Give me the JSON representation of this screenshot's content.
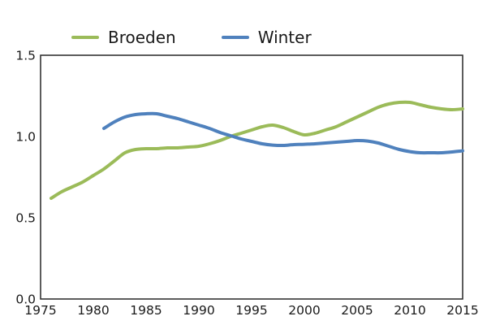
{
  "chart_data": {
    "type": "line",
    "title": "",
    "xlabel": "",
    "ylabel": "",
    "xlim": [
      1975,
      2015
    ],
    "ylim": [
      0,
      1.5
    ],
    "x_ticks": [
      1975,
      1980,
      1985,
      1990,
      1995,
      2000,
      2005,
      2010,
      2015
    ],
    "y_ticks": [
      0,
      0.5,
      1,
      1.5
    ],
    "y_tick_labels": [
      "0.0",
      "0.5",
      "1.0",
      "1.5"
    ],
    "grid": false,
    "legend_position": "top-left",
    "style": {
      "axis_color": "#262626",
      "text_color": "#1a1a1a",
      "background": "#ffffff",
      "line_width": 4
    },
    "series": [
      {
        "name": "Broeden",
        "color": "#9bbb59",
        "x": [
          1976,
          1977,
          1978,
          1979,
          1980,
          1981,
          1982,
          1983,
          1984,
          1985,
          1986,
          1987,
          1988,
          1989,
          1990,
          1991,
          1992,
          1993,
          1994,
          1995,
          1996,
          1997,
          1998,
          1999,
          2000,
          2001,
          2002,
          2003,
          2004,
          2005,
          2006,
          2007,
          2008,
          2009,
          2010,
          2011,
          2012,
          2013,
          2014,
          2015
        ],
        "y": [
          0.62,
          0.66,
          0.69,
          0.72,
          0.76,
          0.8,
          0.85,
          0.9,
          0.92,
          0.925,
          0.925,
          0.93,
          0.93,
          0.935,
          0.94,
          0.955,
          0.975,
          1.0,
          1.02,
          1.04,
          1.06,
          1.07,
          1.055,
          1.03,
          1.01,
          1.02,
          1.04,
          1.06,
          1.09,
          1.12,
          1.15,
          1.18,
          1.2,
          1.21,
          1.21,
          1.195,
          1.18,
          1.17,
          1.165,
          1.17
        ]
      },
      {
        "name": "Winter",
        "color": "#4f81bd",
        "x": [
          1981,
          1982,
          1983,
          1984,
          1985,
          1986,
          1987,
          1988,
          1989,
          1990,
          1991,
          1992,
          1993,
          1994,
          1995,
          1996,
          1997,
          1998,
          1999,
          2000,
          2001,
          2002,
          2003,
          2004,
          2005,
          2006,
          2007,
          2008,
          2009,
          2010,
          2011,
          2012,
          2013,
          2014,
          2015
        ],
        "y": [
          1.05,
          1.09,
          1.12,
          1.135,
          1.14,
          1.14,
          1.125,
          1.11,
          1.09,
          1.07,
          1.05,
          1.025,
          1.005,
          0.985,
          0.97,
          0.955,
          0.947,
          0.945,
          0.95,
          0.952,
          0.955,
          0.96,
          0.965,
          0.97,
          0.975,
          0.972,
          0.96,
          0.94,
          0.92,
          0.907,
          0.9,
          0.9,
          0.9,
          0.905,
          0.912
        ]
      }
    ]
  }
}
